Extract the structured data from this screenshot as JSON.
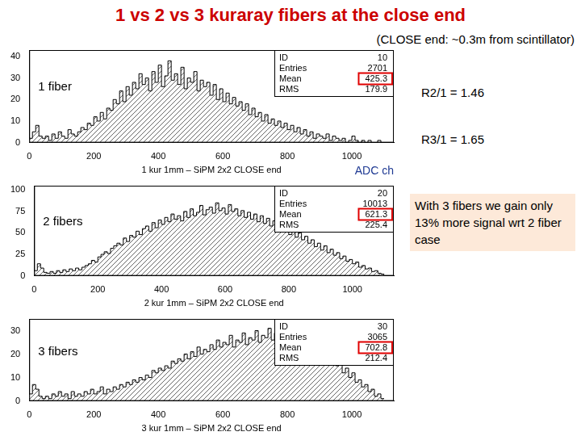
{
  "title": "1 vs 2 vs 3 kuraray fibers at the close end",
  "annotations": [
    "(CLOSE end: ~0.3m from scintillator)",
    "R2/1 = 1.46",
    "R3/1 = 1.65",
    "ADC ch",
    "With 3 fibers  we gain only 13% more signal wrt 2 fiber case"
  ],
  "chart_data": [
    {
      "type": "histogram",
      "label": "1 fiber",
      "x_label": "1 kur 1mm – SiPM 2x2 CLOSE end",
      "color": "#000000",
      "stats": [
        {
          "label": "ID",
          "value": 10
        },
        {
          "label": "Entries",
          "value": 2701
        },
        {
          "label": "Mean",
          "value": 425.3
        },
        {
          "label": "RMS",
          "value": 179.9
        }
      ],
      "bins": [
        0,
        10,
        20,
        30,
        40,
        50,
        60,
        70,
        80,
        90,
        100,
        110,
        120,
        130,
        140,
        150,
        160,
        170,
        180,
        190,
        200,
        210,
        220,
        230,
        240,
        250,
        260,
        270,
        280,
        290,
        300,
        310,
        320,
        330,
        340,
        350,
        360,
        370,
        380,
        390,
        400,
        410,
        420,
        430,
        440,
        450,
        460,
        470,
        480,
        490,
        500,
        510,
        520,
        530,
        540,
        550,
        560,
        570,
        580,
        590,
        600,
        610,
        620,
        630,
        640,
        650,
        660,
        670,
        680,
        690,
        700,
        710,
        720,
        730,
        740,
        750,
        760,
        770,
        780,
        790,
        800,
        810,
        820,
        830,
        840,
        850,
        860,
        870,
        880,
        890,
        900,
        910,
        920,
        930,
        940,
        950,
        960,
        970,
        980,
        990,
        1000,
        1010,
        1020,
        1030,
        1040,
        1050,
        1060,
        1070,
        1080,
        1090,
        1100
      ],
      "values": [
        2,
        5,
        8,
        3,
        2,
        3,
        1,
        4,
        2,
        5,
        3,
        2,
        6,
        4,
        3,
        5,
        7,
        6,
        9,
        8,
        12,
        10,
        14,
        11,
        16,
        15,
        20,
        18,
        24,
        19,
        26,
        22,
        28,
        25,
        32,
        27,
        30,
        24,
        33,
        28,
        36,
        26,
        31,
        38,
        29,
        32,
        27,
        35,
        25,
        30,
        28,
        33,
        24,
        29,
        26,
        28,
        22,
        27,
        20,
        25,
        19,
        23,
        18,
        21,
        17,
        19,
        15,
        18,
        13,
        16,
        12,
        14,
        10,
        13,
        9,
        11,
        8,
        10,
        7,
        9,
        6,
        8,
        5,
        7,
        4,
        6,
        3,
        5,
        2,
        4,
        3,
        2,
        4,
        1,
        3,
        2,
        1,
        2,
        0,
        1,
        3,
        1,
        0,
        1,
        0,
        1,
        0,
        0,
        1,
        0
      ],
      "xlim": [
        0,
        1130
      ],
      "xticks": [
        0,
        200,
        400,
        600,
        800,
        1000
      ],
      "ylim": [
        0,
        43
      ],
      "yticks": [
        0,
        10,
        20,
        30,
        40
      ]
    },
    {
      "type": "histogram",
      "label": "2 fibers",
      "x_label": "2 kur 1mm – SiPM 2x2 CLOSE end",
      "color": "#000000",
      "stats": [
        {
          "label": "ID",
          "value": 20
        },
        {
          "label": "Entries",
          "value": 10013
        },
        {
          "label": "Mean",
          "value": 621.3
        },
        {
          "label": "RMS",
          "value": 225.4
        }
      ],
      "bins": [
        0,
        10,
        20,
        30,
        40,
        50,
        60,
        70,
        80,
        90,
        100,
        110,
        120,
        130,
        140,
        150,
        160,
        170,
        180,
        190,
        200,
        210,
        220,
        230,
        240,
        250,
        260,
        270,
        280,
        290,
        300,
        310,
        320,
        330,
        340,
        350,
        360,
        370,
        380,
        390,
        400,
        410,
        420,
        430,
        440,
        450,
        460,
        470,
        480,
        490,
        500,
        510,
        520,
        530,
        540,
        550,
        560,
        570,
        580,
        590,
        600,
        610,
        620,
        630,
        640,
        650,
        660,
        670,
        680,
        690,
        700,
        710,
        720,
        730,
        740,
        750,
        760,
        770,
        780,
        790,
        800,
        810,
        820,
        830,
        840,
        850,
        860,
        870,
        880,
        890,
        900,
        910,
        920,
        930,
        940,
        950,
        960,
        970,
        980,
        990,
        1000,
        1010,
        1020,
        1030,
        1040,
        1050,
        1060,
        1070,
        1080,
        1090,
        1100
      ],
      "values": [
        6,
        14,
        9,
        4,
        3,
        5,
        3,
        6,
        4,
        7,
        5,
        8,
        6,
        9,
        7,
        10,
        12,
        14,
        18,
        16,
        22,
        25,
        28,
        26,
        32,
        35,
        38,
        36,
        44,
        40,
        47,
        45,
        52,
        48,
        55,
        58,
        52,
        62,
        56,
        65,
        60,
        68,
        63,
        72,
        66,
        70,
        64,
        75,
        68,
        78,
        70,
        74,
        82,
        71,
        77,
        80,
        73,
        85,
        76,
        79,
        72,
        83,
        75,
        78,
        70,
        76,
        68,
        74,
        66,
        72,
        63,
        70,
        61,
        67,
        58,
        64,
        55,
        60,
        52,
        57,
        48,
        54,
        45,
        50,
        42,
        46,
        38,
        42,
        34,
        38,
        30,
        35,
        27,
        31,
        24,
        27,
        20,
        23,
        17,
        19,
        14,
        16,
        10,
        12,
        8,
        9,
        5,
        6,
        3,
        2
      ],
      "xlim": [
        0,
        1130
      ],
      "xticks": [
        0,
        200,
        400,
        600,
        800,
        1000
      ],
      "ylim": [
        0,
        105
      ],
      "yticks": [
        0,
        25,
        50,
        75,
        100
      ]
    },
    {
      "type": "histogram",
      "label": "3 fibers",
      "x_label": "3 kur 1mm – SiPM 2x2 CLOSE end",
      "color": "#000000",
      "stats": [
        {
          "label": "ID",
          "value": 30
        },
        {
          "label": "Entries",
          "value": 3065
        },
        {
          "label": "Mean",
          "value": 702.8
        },
        {
          "label": "RMS",
          "value": 212.4
        }
      ],
      "bins": [
        0,
        10,
        20,
        30,
        40,
        50,
        60,
        70,
        80,
        90,
        100,
        110,
        120,
        130,
        140,
        150,
        160,
        170,
        180,
        190,
        200,
        210,
        220,
        230,
        240,
        250,
        260,
        270,
        280,
        290,
        300,
        310,
        320,
        330,
        340,
        350,
        360,
        370,
        380,
        390,
        400,
        410,
        420,
        430,
        440,
        450,
        460,
        470,
        480,
        490,
        500,
        510,
        520,
        530,
        540,
        550,
        560,
        570,
        580,
        590,
        600,
        610,
        620,
        630,
        640,
        650,
        660,
        670,
        680,
        690,
        700,
        710,
        720,
        730,
        740,
        750,
        760,
        770,
        780,
        790,
        800,
        810,
        820,
        830,
        840,
        850,
        860,
        870,
        880,
        890,
        900,
        910,
        920,
        930,
        940,
        950,
        960,
        970,
        980,
        990,
        1000,
        1010,
        1020,
        1030,
        1040,
        1050,
        1060,
        1070,
        1080,
        1090,
        1100
      ],
      "values": [
        3,
        7,
        5,
        2,
        1,
        2,
        1,
        3,
        2,
        4,
        2,
        3,
        1,
        4,
        2,
        3,
        2,
        4,
        3,
        5,
        3,
        4,
        6,
        3,
        5,
        4,
        6,
        5,
        7,
        6,
        8,
        7,
        9,
        8,
        10,
        9,
        11,
        10,
        13,
        12,
        14,
        13,
        15,
        14,
        17,
        16,
        18,
        17,
        20,
        18,
        21,
        19,
        23,
        20,
        22,
        21,
        24,
        22,
        26,
        23,
        25,
        24,
        28,
        23,
        26,
        25,
        29,
        24,
        27,
        26,
        30,
        25,
        28,
        27,
        31,
        26,
        29,
        24,
        28,
        25,
        30,
        23,
        27,
        24,
        26,
        22,
        25,
        20,
        23,
        19,
        21,
        17,
        20,
        16,
        18,
        15,
        17,
        12,
        14,
        10,
        12,
        8,
        9,
        6,
        7,
        4,
        5,
        2,
        3,
        1
      ],
      "xlim": [
        0,
        1130
      ],
      "xticks": [
        0,
        200,
        400,
        600,
        800,
        1000
      ],
      "ylim": [
        0,
        35
      ],
      "yticks": [
        0,
        10,
        20,
        30
      ]
    }
  ]
}
